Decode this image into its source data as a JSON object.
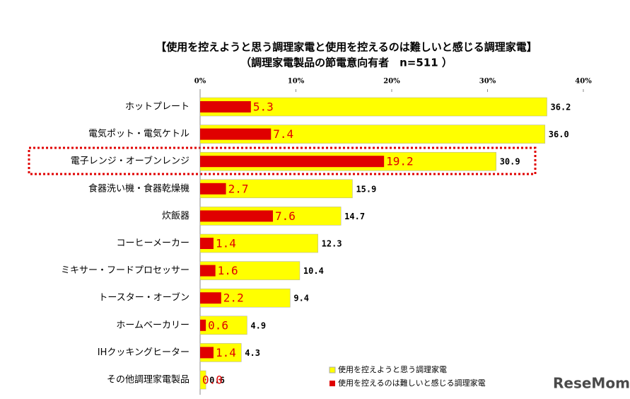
{
  "chart_data": {
    "type": "bar",
    "orientation": "horizontal",
    "title": "【使用を控えようと思う調理家電と使用を控えるのは難しいと感じる調理家電】",
    "subtitle": "（調理家電製品の節電意向有者　n=511 ）",
    "categories": [
      "ホットプレート",
      "電気ポット・電気ケトル",
      "電子レンジ・オーブンレンジ",
      "食器洗い機・食器乾燥機",
      "炊飯器",
      "コーヒーメーカー",
      "ミキサー・フードプロセッサー",
      "トースター・オーブン",
      "ホームベーカリー",
      "IHクッキングヒーター",
      "その他調理家電製品"
    ],
    "series": [
      {
        "name": "使用を控えようと思う調理家電",
        "color": "#ffff00",
        "values": [
          36.2,
          36.0,
          30.9,
          15.9,
          14.7,
          12.3,
          10.4,
          9.4,
          4.9,
          4.3,
          0.6
        ],
        "value_labels": [
          "36.2",
          "36.0",
          "30.9",
          "15.9",
          "14.7",
          "12.3",
          "10.4",
          "9.4",
          "4.9",
          "4.3",
          "0.6"
        ]
      },
      {
        "name": "使用を控えるのは難しいと感じる調理家電",
        "color": "#e00000",
        "values": [
          5.3,
          7.4,
          19.2,
          2.7,
          7.6,
          1.4,
          1.6,
          2.2,
          0.6,
          1.4,
          0.0
        ],
        "value_labels": [
          "5.3",
          "7.4",
          "19.2",
          "2.7",
          "7.6",
          "1.4",
          "1.6",
          "2.2",
          "0.6",
          "1.4",
          "0.0"
        ]
      }
    ],
    "xlim": [
      0,
      40
    ],
    "xticks": [
      {
        "value": 0,
        "label": "0%"
      },
      {
        "value": 10,
        "label": "10%"
      },
      {
        "value": 20,
        "label": "20%"
      },
      {
        "value": 30,
        "label": "30%"
      },
      {
        "value": 40,
        "label": "40%"
      }
    ],
    "watermark": "ReseMom"
  }
}
